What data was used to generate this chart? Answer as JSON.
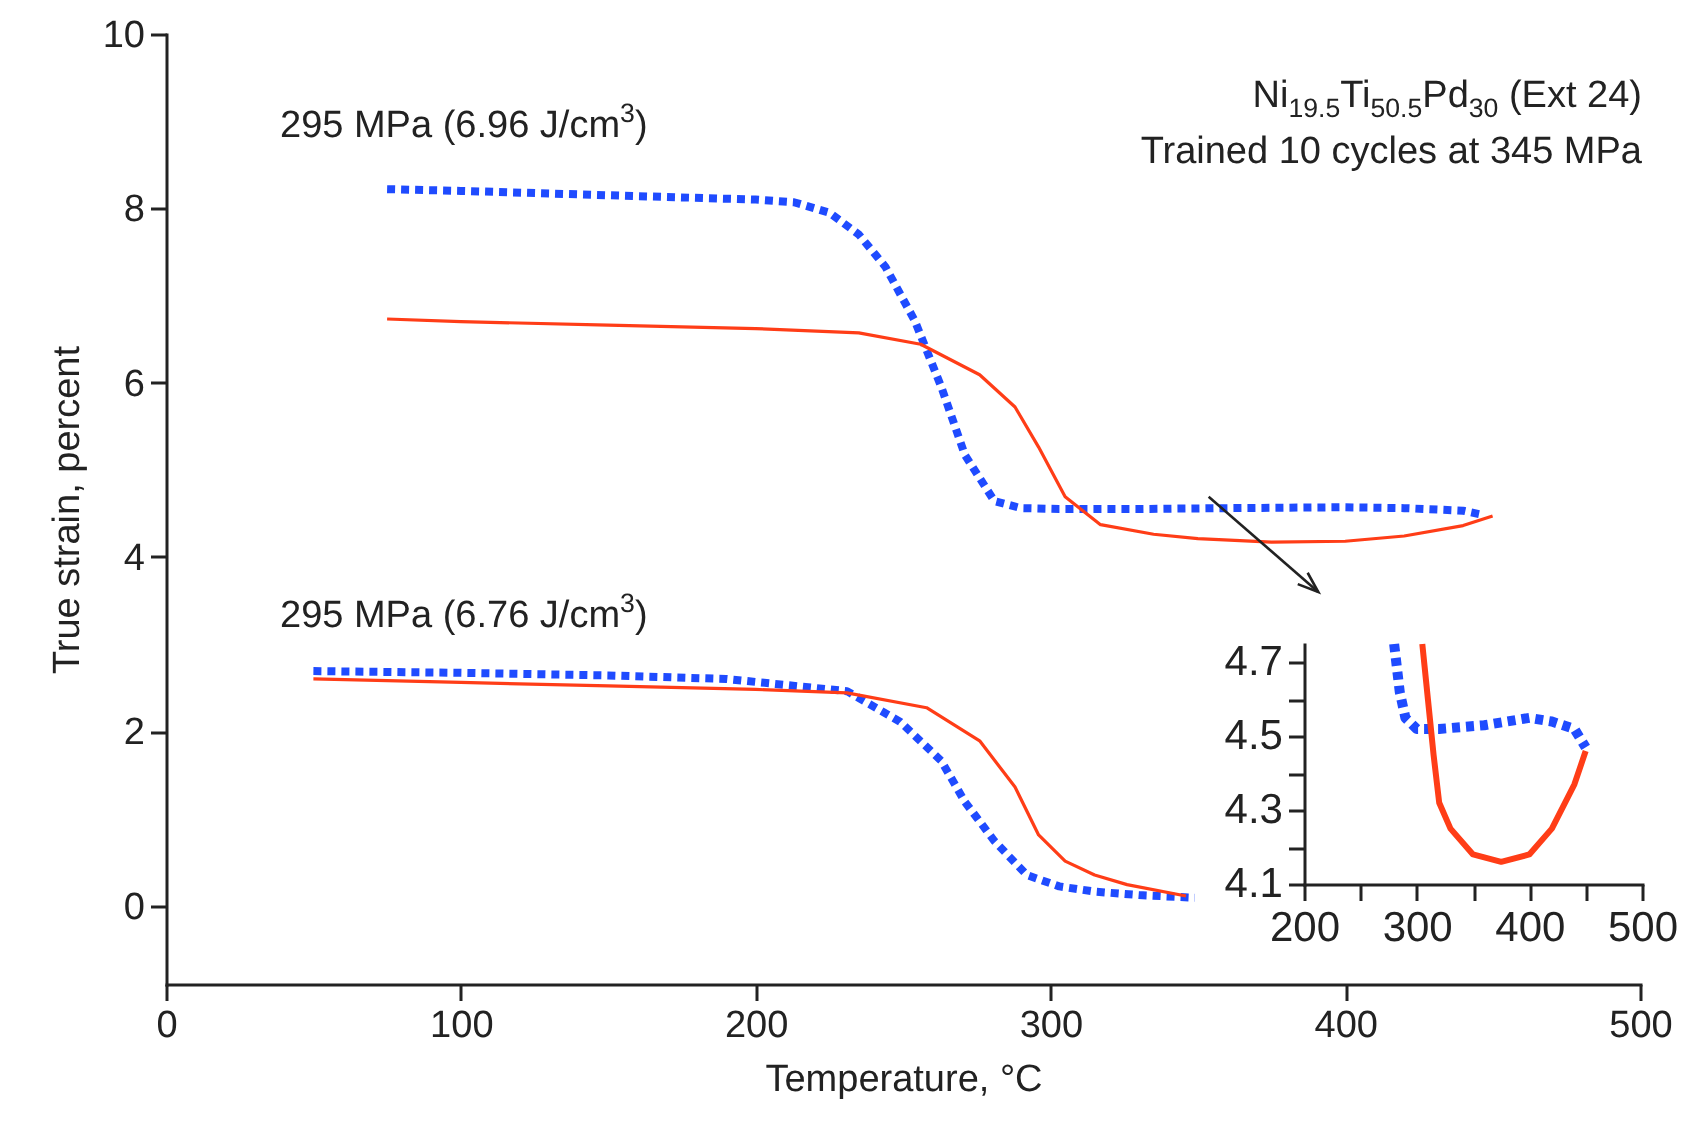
{
  "chart_data": [
    {
      "type": "line",
      "xlabel": "Temperature, °C",
      "ylabel": "True strain, percent",
      "xlim": [
        0,
        500
      ],
      "ylim": [
        -0.9,
        10
      ],
      "xticks": [
        0,
        100,
        200,
        300,
        400,
        500
      ],
      "yticks": [
        0,
        2,
        4,
        6,
        8,
        10
      ],
      "annotations": [
        "295 MPa (6.96 J/cm$^{3}$)",
        "295 MPa (6.76 J/cm$^{3}$)",
        "Ni$_{19.5}$Ti$_{50.5}$Pd$_{30}$ (Ext 24)",
        "Trained 10 cycles at 345 MPa"
      ],
      "series": [
        {
          "color": "#1f4bff",
          "line_style": "dotted",
          "x": [
            75,
            100,
            150,
            200,
            213,
            225,
            235,
            244,
            254,
            263,
            271,
            281,
            290,
            303,
            330,
            360,
            400,
            420,
            440,
            447
          ],
          "values": [
            8.22,
            8.2,
            8.15,
            8.1,
            8.07,
            7.95,
            7.7,
            7.33,
            6.71,
            5.95,
            5.17,
            4.64,
            4.56,
            4.55,
            4.55,
            4.56,
            4.57,
            4.56,
            4.53,
            4.48
          ]
        },
        {
          "color": "#ff3d17",
          "line_style": "solid",
          "x": [
            75,
            100,
            150,
            200,
            235,
            256,
            276,
            288,
            296,
            305,
            317,
            335,
            350,
            375,
            400,
            420,
            440,
            450
          ],
          "values": [
            6.73,
            6.7,
            6.66,
            6.62,
            6.57,
            6.44,
            6.09,
            5.72,
            5.26,
            4.69,
            4.37,
            4.26,
            4.21,
            4.17,
            4.18,
            4.24,
            4.36,
            4.47
          ]
        },
        {
          "color": "#1f4bff",
          "line_style": "dotted",
          "x": [
            50,
            100,
            150,
            190,
            231,
            249,
            263,
            271,
            281,
            292,
            303,
            315,
            330,
            349
          ],
          "values": [
            2.69,
            2.67,
            2.64,
            2.6,
            2.46,
            2.11,
            1.66,
            1.19,
            0.74,
            0.35,
            0.22,
            0.16,
            0.12,
            0.09
          ]
        },
        {
          "color": "#ff3d17",
          "line_style": "solid",
          "x": [
            50,
            100,
            150,
            200,
            231,
            258,
            276,
            288,
            296,
            305,
            315,
            326,
            346
          ],
          "values": [
            2.6,
            2.56,
            2.52,
            2.48,
            2.44,
            2.27,
            1.89,
            1.36,
            0.81,
            0.51,
            0.35,
            0.24,
            0.11
          ]
        }
      ]
    },
    {
      "type": "line",
      "xlim": [
        200,
        500
      ],
      "ylim": [
        4.1,
        4.75
      ],
      "xticks": [
        200,
        {
          "value": 250,
          "label": null
        },
        300,
        {
          "value": 350,
          "label": null
        },
        400,
        {
          "value": 450,
          "label": null
        },
        500
      ],
      "yticks": [
        4.1,
        {
          "value": 4.2,
          "label": null
        },
        4.3,
        {
          "value": 4.4,
          "label": null
        },
        4.5,
        {
          "value": 4.6,
          "label": null
        },
        4.7
      ],
      "series": [
        {
          "color": "#1f4bff",
          "line_style": "dotted",
          "x": [
            280,
            285,
            290,
            300,
            320,
            360,
            400,
            420,
            440,
            450
          ],
          "values": [
            4.75,
            4.62,
            4.55,
            4.52,
            4.52,
            4.53,
            4.55,
            4.54,
            4.52,
            4.47
          ]
        },
        {
          "color": "#ff3d17",
          "line_style": "solid",
          "x": [
            305,
            310,
            315,
            320,
            330,
            350,
            375,
            400,
            420,
            440,
            450
          ],
          "values": [
            4.75,
            4.6,
            4.45,
            4.32,
            4.25,
            4.18,
            4.16,
            4.18,
            4.25,
            4.37,
            4.46
          ]
        }
      ]
    }
  ]
}
